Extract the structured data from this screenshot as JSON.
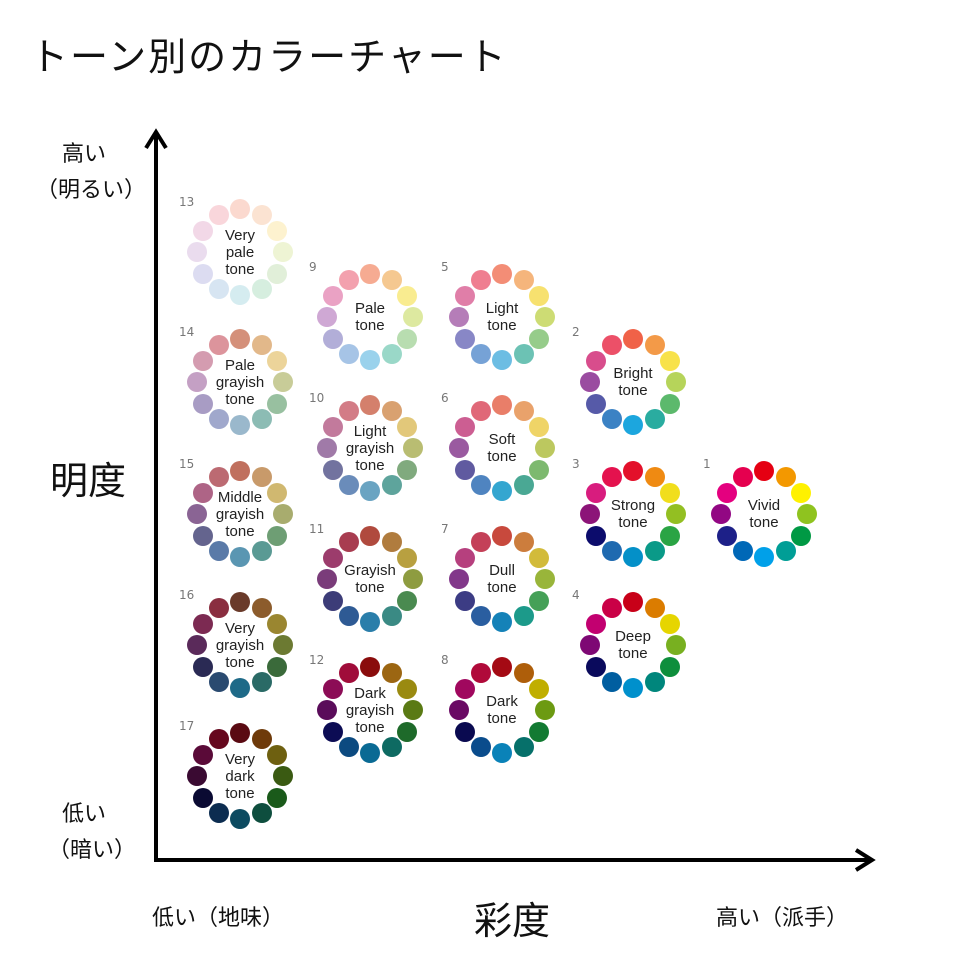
{
  "title": "トーン別のカラーチャート",
  "y_axis": {
    "title": "明度",
    "high": "高い",
    "high_note": "（明るい）",
    "low": "低い",
    "low_note": "（暗い）"
  },
  "x_axis": {
    "title": "彩度",
    "low": "低い（地味）",
    "high": "高い（派手）"
  },
  "chart_data": {
    "type": "diagram",
    "tones": [
      {
        "id": "13",
        "name": "Very\npale\ntone",
        "colors": [
          "#fbd9cf",
          "#fbe3d2",
          "#fdf2cf",
          "#eef4d4",
          "#e1efd9",
          "#d6eedf",
          "#d5ecf0",
          "#d7e5f2",
          "#dcdcf1",
          "#eadcee",
          "#f2d8e7",
          "#f9d6db"
        ]
      },
      {
        "id": "14",
        "name": "Pale\ngrayish\ntone",
        "colors": [
          "#d4907a",
          "#e2b88a",
          "#ecd49a",
          "#c8cc98",
          "#98c0a0",
          "#8cbcb4",
          "#9ab8cc",
          "#a0a8cc",
          "#a89cc4",
          "#c4a0c4",
          "#d49cb0",
          "#dc949c"
        ]
      },
      {
        "id": "9",
        "name": "Pale\ntone",
        "colors": [
          "#f6ab92",
          "#f5c890",
          "#f9ec90",
          "#dde9a0",
          "#b8ddb0",
          "#9ad8c8",
          "#9ad2ec",
          "#a6c4e6",
          "#b2aed8",
          "#cfa8d4",
          "#eaa2c4",
          "#f3a1ae"
        ]
      },
      {
        "id": "5",
        "name": "Light\ntone",
        "colors": [
          "#f38d76",
          "#f5b57c",
          "#f7e16f",
          "#cddc74",
          "#96cc8a",
          "#6cc2b4",
          "#6cbde3",
          "#76a2d6",
          "#8887c6",
          "#b57db8",
          "#e07ea8",
          "#ef7e90"
        ]
      },
      {
        "id": "2",
        "name": "Bright\ntone",
        "colors": [
          "#f06248",
          "#f39a48",
          "#f8e24a",
          "#b6d45a",
          "#5cb96c",
          "#2aaca0",
          "#1ca6de",
          "#3b82c4",
          "#565aa8",
          "#9a4ca0",
          "#d84d8c",
          "#ec5068"
        ]
      },
      {
        "id": "10",
        "name": "Light\ngrayish\ntone",
        "colors": [
          "#d4806c",
          "#d9a170",
          "#e2c87a",
          "#b9bd72",
          "#80aa7e",
          "#5ea49c",
          "#6aa4c2",
          "#6a8cba",
          "#72739f",
          "#a07aa8",
          "#c27a9c",
          "#d37c86"
        ]
      },
      {
        "id": "6",
        "name": "Soft\ntone",
        "colors": [
          "#e97e69",
          "#e9a26b",
          "#efd467",
          "#bcc85f",
          "#7db96f",
          "#4aa894",
          "#34a6d0",
          "#4f84c0",
          "#605aa0",
          "#9a5aa0",
          "#cc5e92",
          "#e06878"
        ]
      },
      {
        "id": "15",
        "name": "Middle\ngrayish\ntone",
        "colors": [
          "#c0705e",
          "#c89a6a",
          "#d0b870",
          "#a8ac6e",
          "#6e9e74",
          "#5a9a94",
          "#5a96b2",
          "#5a7aa8",
          "#64648e",
          "#8a6494",
          "#ae6486",
          "#bc6a72"
        ]
      },
      {
        "id": "3",
        "name": "Strong\ntone",
        "colors": [
          "#e3102a",
          "#ef8a12",
          "#f1de1c",
          "#93bf22",
          "#2aa444",
          "#0a9a88",
          "#0490c8",
          "#1f6ab0",
          "#0c0c6c",
          "#8c1478",
          "#d81c7e",
          "#e4124e"
        ]
      },
      {
        "id": "1",
        "name": "Vivid\ntone",
        "colors": [
          "#e50012",
          "#f39800",
          "#fff100",
          "#8fc31f",
          "#009944",
          "#009e96",
          "#00a0e9",
          "#0068b7",
          "#1d2088",
          "#920783",
          "#e4007f",
          "#e5004f"
        ]
      },
      {
        "id": "11",
        "name": "Grayish\ntone",
        "colors": [
          "#b04a3e",
          "#b07c3e",
          "#b8a040",
          "#8e9c40",
          "#4a8a50",
          "#3a8a84",
          "#2a7eaa",
          "#2e5a94",
          "#3c3c78",
          "#7a3c7a",
          "#9c3c6c",
          "#a83c50"
        ]
      },
      {
        "id": "7",
        "name": "Dull\ntone",
        "colors": [
          "#c8493d",
          "#cc7d3d",
          "#d2bb3a",
          "#99b53a",
          "#45a057",
          "#1c9a8a",
          "#1582b8",
          "#2a5ea0",
          "#3c3c84",
          "#82388a",
          "#b6407e",
          "#c44058"
        ]
      },
      {
        "id": "16",
        "name": "Very\ngrayish\ntone",
        "colors": [
          "#6a3a2a",
          "#8c5c2c",
          "#9a8630",
          "#6c7a32",
          "#3a6a3a",
          "#2a6a66",
          "#1e6a88",
          "#2a4a70",
          "#2a2a54",
          "#5a2a5a",
          "#7c2a52",
          "#8a2e40"
        ]
      },
      {
        "id": "4",
        "name": "Deep\ntone",
        "colors": [
          "#c80018",
          "#db7c00",
          "#e6d500",
          "#78b020",
          "#0e8e3c",
          "#00867c",
          "#0090cc",
          "#005ea0",
          "#0a0a5c",
          "#7e0874",
          "#c20070",
          "#ca0046"
        ]
      },
      {
        "id": "12",
        "name": "Dark\ngrayish\ntone",
        "colors": [
          "#8a0c0c",
          "#9c6612",
          "#9a8a10",
          "#5a7a14",
          "#1e6a2a",
          "#0e6a62",
          "#0a6a94",
          "#0c4a80",
          "#0c0c54",
          "#5a0c5a",
          "#8c0c56",
          "#a00c3a"
        ]
      },
      {
        "id": "8",
        "name": "Dark\ntone",
        "colors": [
          "#a40a14",
          "#ae5e0a",
          "#c0ae00",
          "#6c9a12",
          "#127a32",
          "#06706a",
          "#0a82b8",
          "#0a4c8c",
          "#0a0a50",
          "#6a0a64",
          "#a0085e",
          "#b00a3a"
        ]
      },
      {
        "id": "17",
        "name": "Very\ndark\ntone",
        "colors": [
          "#5a0a12",
          "#6e3a0a",
          "#6e6010",
          "#3a5a12",
          "#1a5a1a",
          "#0e4e3e",
          "#0c4a60",
          "#0c2c50",
          "#0a0a32",
          "#3a0a32",
          "#5a0a38",
          "#66081e"
        ]
      }
    ]
  }
}
